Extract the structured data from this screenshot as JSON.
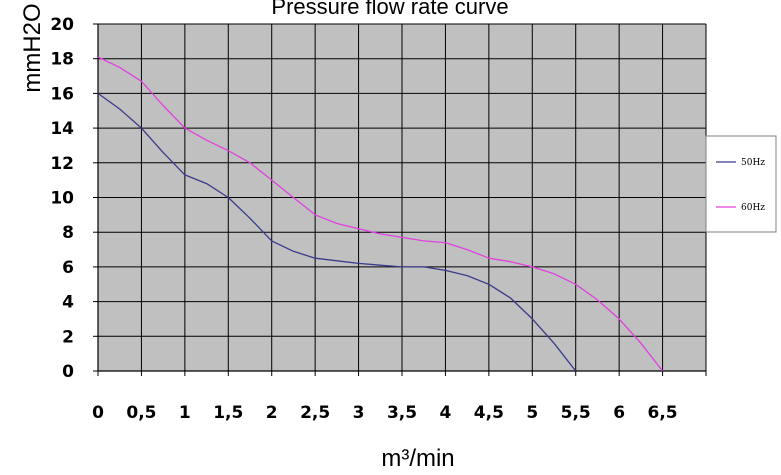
{
  "chart_data": {
    "type": "line",
    "title": "Pressure flow rate curve",
    "xlabel": "m³/min",
    "ylabel": "mmH2O",
    "xlim": [
      0,
      7
    ],
    "ylim": [
      0,
      20
    ],
    "x_ticks": [
      0,
      0.5,
      1,
      1.5,
      2,
      2.5,
      3,
      3.5,
      4,
      4.5,
      5,
      5.5,
      6,
      6.5
    ],
    "x_tick_labels": [
      "0",
      "0,5",
      "1",
      "1,5",
      "2",
      "2,5",
      "3",
      "3,5",
      "4",
      "4,5",
      "5",
      "5,5",
      "6",
      "6,5"
    ],
    "y_ticks": [
      0,
      2,
      4,
      6,
      8,
      10,
      12,
      14,
      16,
      18,
      20
    ],
    "y_tick_labels": [
      "0",
      "2",
      "4",
      "6",
      "8",
      "10",
      "12",
      "14",
      "16",
      "18",
      "20"
    ],
    "grid": true,
    "legend_position": "right",
    "colors": {
      "plot_background": "#c0c0c0",
      "grid": "#000000",
      "50Hz": "#3a3a8c",
      "60Hz": "#e040e0"
    },
    "series": [
      {
        "name": "50Hz",
        "x": [
          0,
          0.25,
          0.5,
          0.75,
          1,
          1.25,
          1.5,
          1.75,
          2,
          2.25,
          2.5,
          2.75,
          3,
          3.25,
          3.5,
          3.75,
          4,
          4.25,
          4.5,
          4.75,
          5,
          5.25,
          5.5
        ],
        "y": [
          16,
          15.1,
          14,
          12.6,
          11.3,
          10.8,
          10,
          8.8,
          7.5,
          6.9,
          6.5,
          6.35,
          6.2,
          6.1,
          6,
          6,
          5.8,
          5.5,
          5,
          4.2,
          3,
          1.6,
          0
        ]
      },
      {
        "name": "60Hz",
        "x": [
          0,
          0.25,
          0.5,
          0.75,
          1,
          1.25,
          1.5,
          1.75,
          2,
          2.25,
          2.5,
          2.75,
          3,
          3.25,
          3.5,
          3.75,
          4,
          4.25,
          4.5,
          4.75,
          5,
          5.25,
          5.5,
          5.75,
          6,
          6.25,
          6.5
        ],
        "y": [
          18.1,
          17.5,
          16.7,
          15.3,
          14,
          13.3,
          12.7,
          12,
          11,
          10,
          9,
          8.5,
          8.2,
          7.9,
          7.7,
          7.5,
          7.4,
          7,
          6.5,
          6.3,
          6,
          5.6,
          5,
          4.1,
          3,
          1.6,
          0
        ]
      }
    ]
  }
}
